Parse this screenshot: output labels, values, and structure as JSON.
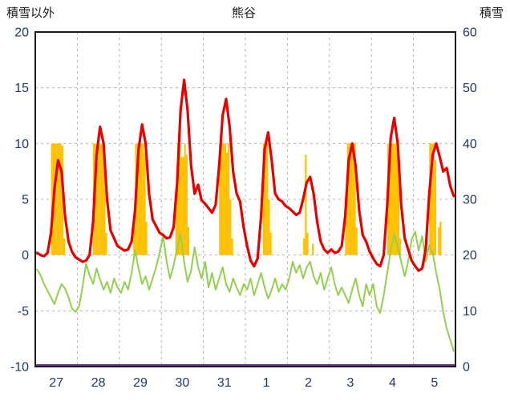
{
  "chart_data": {
    "type": "line+bar",
    "title": "熊谷",
    "left_axis": {
      "label": "積雪以外",
      "min": -10,
      "max": 20,
      "ticks": [
        20,
        15,
        10,
        5,
        0,
        -5,
        -10
      ]
    },
    "right_axis": {
      "label": "積雪",
      "min": 0,
      "max": 60,
      "ticks": [
        60,
        50,
        40,
        30,
        20,
        10,
        0
      ]
    },
    "x_axis": {
      "day_labels": [
        "27",
        "28",
        "29",
        "30",
        "31",
        "1",
        "2",
        "3",
        "4",
        "5"
      ],
      "hours_per_day": 24
    },
    "grid": "dashed vertical at day boundaries, dashed horizontal every 5 (left axis)",
    "colors": {
      "grid": "#b3b3b3",
      "border": "#1a1a1a",
      "tick_text": "#1f3864",
      "background": "#ffffff"
    },
    "series": {
      "red_line": {
        "kind": "line",
        "axis": "left",
        "color": "#e60000",
        "interval_hours": 2,
        "values": [
          0.2,
          0.0,
          -0.1,
          0.2,
          2.0,
          6.0,
          8.5,
          7.5,
          3.5,
          1.2,
          0.3,
          -0.2,
          -0.4,
          -0.6,
          -0.5,
          0.0,
          3.0,
          9.0,
          11.5,
          10.0,
          5.0,
          2.2,
          1.5,
          0.8,
          0.6,
          0.4,
          0.5,
          1.2,
          4.0,
          9.5,
          11.7,
          10.0,
          5.5,
          3.2,
          2.6,
          2.0,
          1.8,
          1.5,
          1.6,
          2.5,
          6.5,
          13.0,
          15.7,
          13.0,
          8.0,
          5.5,
          6.3,
          4.9,
          4.6,
          4.2,
          3.8,
          4.5,
          8.0,
          12.5,
          14.0,
          11.5,
          7.5,
          5.5,
          4.8,
          2.5,
          0.8,
          -0.5,
          -1.0,
          -0.3,
          3.5,
          9.5,
          11.0,
          8.5,
          5.5,
          5.0,
          4.8,
          4.4,
          4.2,
          3.9,
          3.6,
          3.8,
          5.0,
          6.5,
          7.0,
          5.5,
          3.0,
          1.2,
          0.5,
          0.2,
          0.5,
          0.2,
          0.3,
          0.8,
          3.5,
          8.5,
          10.0,
          8.0,
          4.0,
          1.8,
          1.2,
          0.3,
          -0.3,
          -0.8,
          -1.0,
          0.0,
          4.5,
          10.5,
          12.3,
          10.0,
          4.5,
          1.5,
          0.5,
          -0.5,
          -1.0,
          -1.4,
          -1.2,
          0.5,
          5.5,
          9.0,
          10.0,
          8.8,
          7.5,
          7.8,
          6.2,
          5.3
        ]
      },
      "green_line": {
        "kind": "line",
        "axis": "left",
        "color": "#92d050",
        "interval_hours": 2,
        "values": [
          -1.3,
          -1.8,
          -2.6,
          -3.2,
          -3.8,
          -4.4,
          -3.4,
          -2.6,
          -3.0,
          -3.8,
          -4.8,
          -5.1,
          -4.6,
          -2.8,
          -0.8,
          -1.8,
          -2.6,
          -1.2,
          -2.2,
          -3.1,
          -2.4,
          -3.4,
          -2.1,
          -2.9,
          -3.4,
          -2.4,
          -3.1,
          -1.6,
          0.4,
          -1.2,
          -2.6,
          -1.9,
          -3.1,
          -2.1,
          -1.1,
          0.2,
          1.7,
          -0.6,
          -2.1,
          -0.9,
          0.6,
          1.9,
          -0.6,
          -2.4,
          -1.4,
          0.7,
          -1.1,
          -2.1,
          -0.6,
          -2.9,
          -1.6,
          -3.1,
          -2.1,
          -1.1,
          -2.6,
          -3.3,
          -2.1,
          -2.9,
          -3.6,
          -2.6,
          -3.1,
          -2.1,
          -3.6,
          -2.6,
          -1.6,
          -2.9,
          -3.9,
          -3.1,
          -2.1,
          -3.3,
          -2.6,
          -3.1,
          -2.1,
          -0.6,
          -1.6,
          -0.9,
          -2.1,
          -1.1,
          -0.6,
          -1.9,
          -2.6,
          -1.6,
          -3.1,
          -2.1,
          -1.1,
          -2.6,
          -3.6,
          -2.9,
          -3.6,
          -4.3,
          -3.1,
          -2.1,
          -3.6,
          -4.6,
          -2.6,
          -3.6,
          -2.6,
          -4.6,
          -5.2,
          -3.6,
          -1.6,
          0.4,
          1.9,
          0.7,
          -0.6,
          -1.9,
          -0.6,
          1.4,
          2.1,
          0.4,
          1.7,
          -0.6,
          0.9,
          0.2,
          -1.6,
          -3.1,
          -5.1,
          -6.6,
          -7.6,
          -8.6
        ]
      },
      "orange_bars": {
        "kind": "bar",
        "axis": "left",
        "color": "#ffc000",
        "baseline": 0,
        "bars_day_hour_value": [
          [
            0,
            9,
            10
          ],
          [
            0,
            10,
            10
          ],
          [
            0,
            11,
            10
          ],
          [
            0,
            12,
            10
          ],
          [
            0,
            13,
            10
          ],
          [
            0,
            14,
            10
          ],
          [
            0,
            15,
            9.8
          ],
          [
            0,
            16,
            1.5
          ],
          [
            1,
            9,
            10
          ],
          [
            1,
            10,
            10
          ],
          [
            1,
            11,
            10
          ],
          [
            1,
            12,
            10
          ],
          [
            1,
            13,
            10
          ],
          [
            1,
            14,
            10
          ],
          [
            1,
            15,
            9.0
          ],
          [
            1,
            16,
            2.0
          ],
          [
            2,
            8,
            2.8
          ],
          [
            2,
            9,
            10
          ],
          [
            2,
            10,
            10
          ],
          [
            2,
            11,
            10
          ],
          [
            2,
            12,
            10
          ],
          [
            2,
            13,
            10
          ],
          [
            2,
            14,
            9.2
          ],
          [
            2,
            15,
            3.0
          ],
          [
            3,
            8,
            5.0
          ],
          [
            3,
            9,
            10
          ],
          [
            3,
            10,
            10
          ],
          [
            3,
            11,
            8.8
          ],
          [
            3,
            12,
            8.8
          ],
          [
            3,
            13,
            10
          ],
          [
            3,
            14,
            9.0
          ],
          [
            3,
            15,
            2.5
          ],
          [
            4,
            9,
            10
          ],
          [
            4,
            10,
            10
          ],
          [
            4,
            11,
            10
          ],
          [
            4,
            12,
            10
          ],
          [
            4,
            13,
            9.2
          ],
          [
            4,
            14,
            10
          ],
          [
            4,
            15,
            5.0
          ],
          [
            4,
            16,
            1.5
          ],
          [
            5,
            10,
            10
          ],
          [
            5,
            11,
            10
          ],
          [
            5,
            12,
            10
          ],
          [
            5,
            13,
            5.0
          ],
          [
            5,
            14,
            2.0
          ],
          [
            6,
            9,
            1.5
          ],
          [
            6,
            10,
            9.0
          ],
          [
            6,
            11,
            2.0
          ],
          [
            6,
            14,
            1.0
          ],
          [
            7,
            9,
            4.0
          ],
          [
            7,
            10,
            10
          ],
          [
            7,
            11,
            10
          ],
          [
            7,
            12,
            10
          ],
          [
            7,
            13,
            10
          ],
          [
            7,
            14,
            10
          ],
          [
            7,
            15,
            2.5
          ],
          [
            8,
            9,
            10
          ],
          [
            8,
            10,
            10
          ],
          [
            8,
            11,
            10
          ],
          [
            8,
            12,
            10
          ],
          [
            8,
            13,
            10
          ],
          [
            8,
            14,
            10
          ],
          [
            8,
            15,
            9.5
          ],
          [
            8,
            16,
            1.5
          ],
          [
            9,
            9,
            10
          ],
          [
            9,
            10,
            10
          ],
          [
            9,
            11,
            10
          ],
          [
            9,
            12,
            8.5
          ],
          [
            9,
            14,
            2.5
          ],
          [
            9,
            15,
            3.0
          ]
        ]
      },
      "purple_line": {
        "kind": "line",
        "axis": "right",
        "color": "#7030a0",
        "value": 0
      }
    }
  }
}
